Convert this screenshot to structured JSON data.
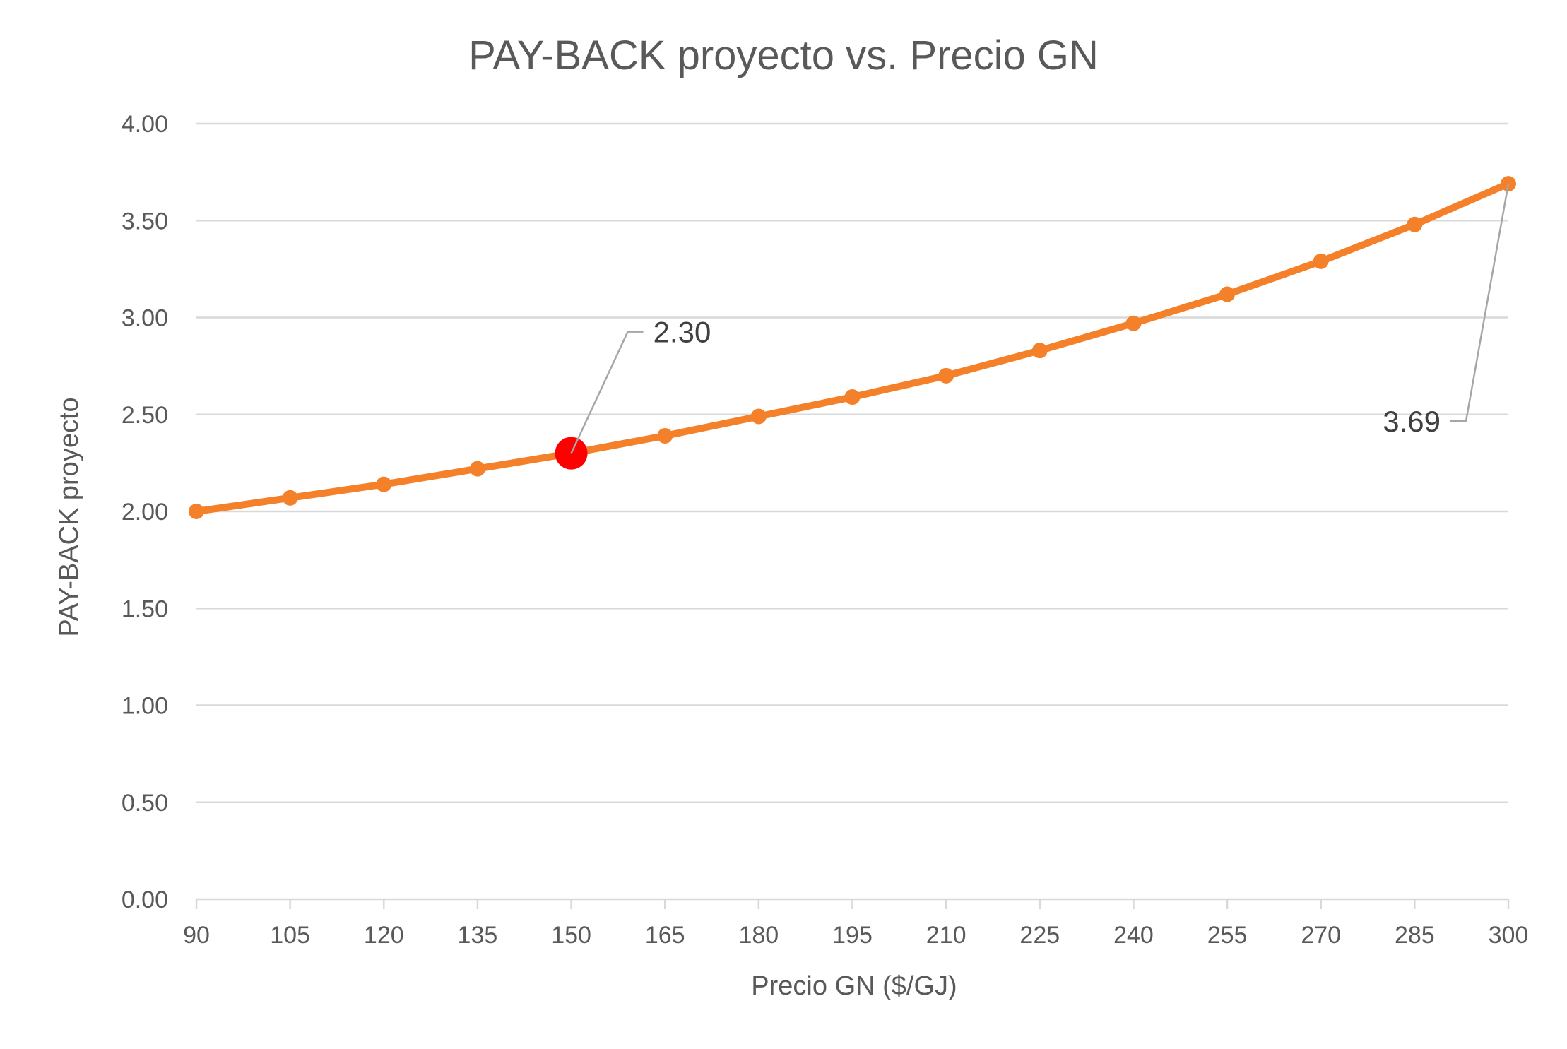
{
  "chart_data": {
    "type": "line",
    "title": "PAY-BACK proyecto  vs. Precio GN",
    "xlabel": "Precio GN ($/GJ)",
    "ylabel": "PAY-BACK proyecto",
    "x": [
      90,
      105,
      120,
      135,
      150,
      165,
      180,
      195,
      210,
      225,
      240,
      255,
      270,
      285,
      300
    ],
    "x_tick_labels": [
      "90",
      "105",
      "120",
      "135",
      "150",
      "165",
      "180",
      "195",
      "210",
      "225",
      "240",
      "255",
      "270",
      "285",
      "300"
    ],
    "ylim": [
      0,
      4
    ],
    "y_ticks": [
      0,
      0.5,
      1,
      1.5,
      2,
      2.5,
      3,
      3.5,
      4
    ],
    "y_tick_labels": [
      "0.00",
      "0.50",
      "1.00",
      "1.50",
      "2.00",
      "2.50",
      "3.00",
      "3.50",
      "4.00"
    ],
    "grid": true,
    "series": [
      {
        "values": [
          2.0,
          2.07,
          2.14,
          2.22,
          2.3,
          2.39,
          2.49,
          2.59,
          2.7,
          2.83,
          2.97,
          3.12,
          3.29,
          3.48,
          3.69
        ],
        "color": "#f5802a"
      }
    ],
    "highlight": {
      "x": 150,
      "value": 2.3,
      "color": "#ff0000"
    },
    "annotations": [
      {
        "x": 150,
        "value": 2.3,
        "text": "2.30",
        "placement": "upper-right"
      },
      {
        "x": 300,
        "value": 3.69,
        "text": "3.69",
        "placement": "lower-left"
      }
    ]
  }
}
